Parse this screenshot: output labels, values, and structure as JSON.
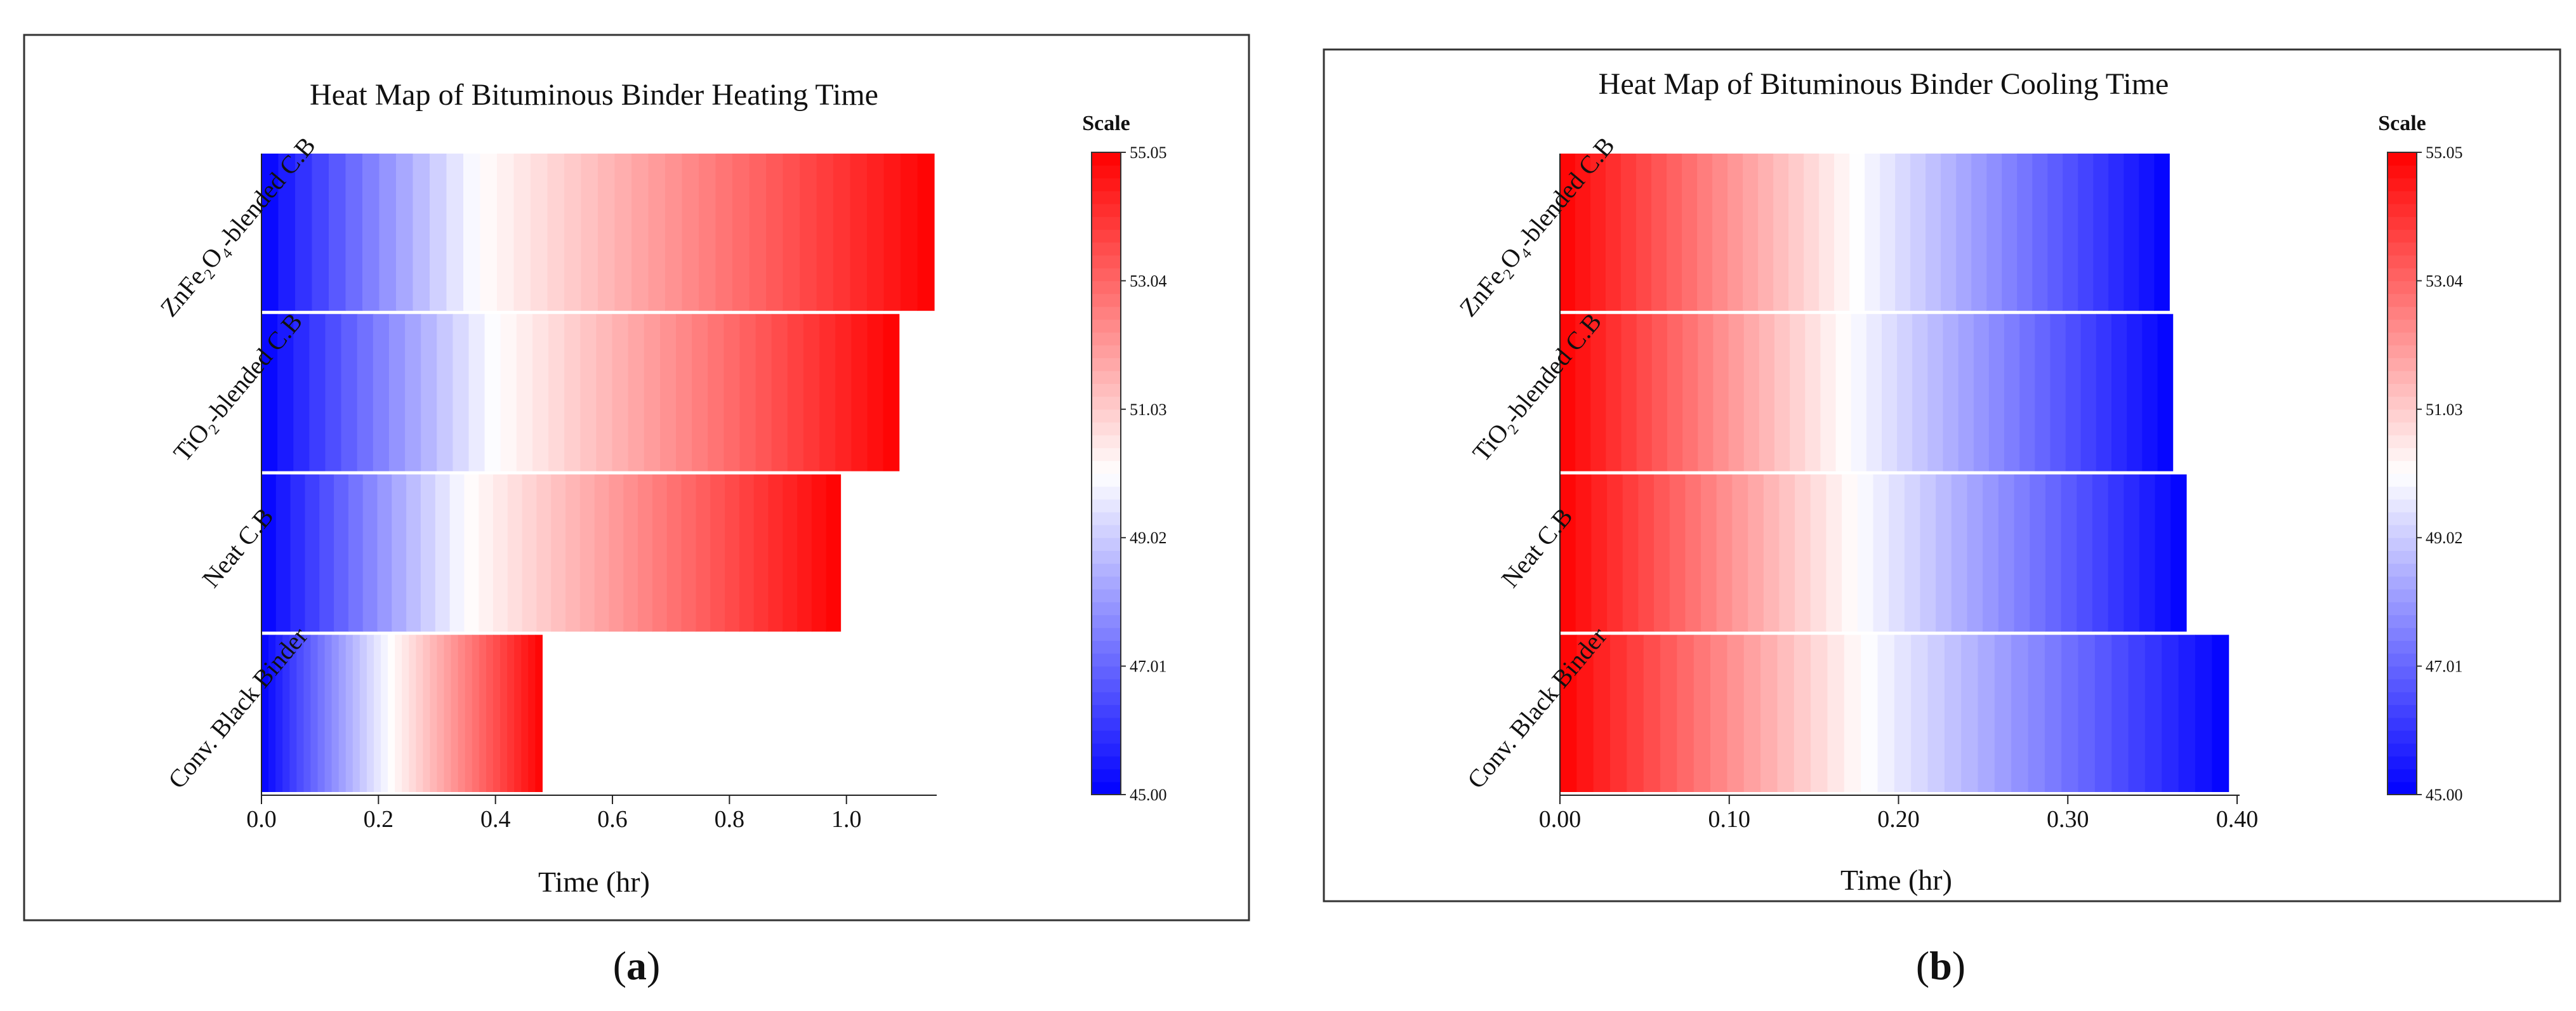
{
  "colors": {
    "low": "#0000ff",
    "mid": "#ffffff",
    "high": "#ff0000",
    "divider": "#ffffff",
    "frame": "#333333"
  },
  "chart_data": [
    {
      "type": "heatmap",
      "panel_label": "(a)",
      "panel_letter": "a",
      "title": "Heat Map of Bituminous Binder Heating Time",
      "xlabel": "Time (hr)",
      "ylabel": "",
      "direction": "heating",
      "xlim": [
        0,
        1.15
      ],
      "xticks": [
        0.0,
        0.2,
        0.4,
        0.6,
        0.8,
        1.0
      ],
      "xtick_labels": [
        "0.0",
        "0.2",
        "0.4",
        "0.6",
        "0.8",
        "1.0"
      ],
      "categories_top_to_bottom": [
        {
          "label": "ZnFe₂O₄-blended C.B",
          "end": 1.15,
          "neutral_at": 0.37
        },
        {
          "label": "TiO₂-blended C.B",
          "end": 1.09,
          "neutral_at": 0.4
        },
        {
          "label": "Neat C.B",
          "end": 0.99,
          "neutral_at": 0.35
        },
        {
          "label": "Conv. Black Binder",
          "end": 0.48,
          "neutral_at": 0.22
        }
      ],
      "temperature_start": 45.0,
      "temperature_end": 55.05,
      "scale": {
        "title": "Scale",
        "min": 45.0,
        "max": 55.05,
        "tick_labels": [
          "55.05",
          "53.04",
          "51.03",
          "49.02",
          "47.01",
          "45.00"
        ]
      }
    },
    {
      "type": "heatmap",
      "panel_label": "(b)",
      "panel_letter": "b",
      "title": "Heat Map of Bituminous Binder Cooling Time",
      "xlabel": "Time (hr)",
      "ylabel": "",
      "direction": "cooling",
      "xlim": [
        0,
        0.4
      ],
      "xticks": [
        0.0,
        0.1,
        0.2,
        0.3,
        0.4
      ],
      "xtick_labels": [
        "0.00",
        "0.10",
        "0.20",
        "0.30",
        "0.40"
      ],
      "categories_top_to_bottom": [
        {
          "label": "ZnFe₂O₄-blended C.B",
          "end": 0.36,
          "neutral_at": 0.175
        },
        {
          "label": "TiO₂-blended C.B",
          "end": 0.362,
          "neutral_at": 0.17
        },
        {
          "label": "Neat C.B",
          "end": 0.37,
          "neutral_at": 0.175
        },
        {
          "label": "Conv. Black Binder",
          "end": 0.395,
          "neutral_at": 0.18
        }
      ],
      "temperature_start": 55.05,
      "temperature_end": 45.0,
      "scale": {
        "title": "Scale",
        "min": 45.0,
        "max": 55.05,
        "tick_labels": [
          "55.05",
          "53.04",
          "51.03",
          "49.02",
          "47.01",
          "45.00"
        ]
      }
    }
  ]
}
